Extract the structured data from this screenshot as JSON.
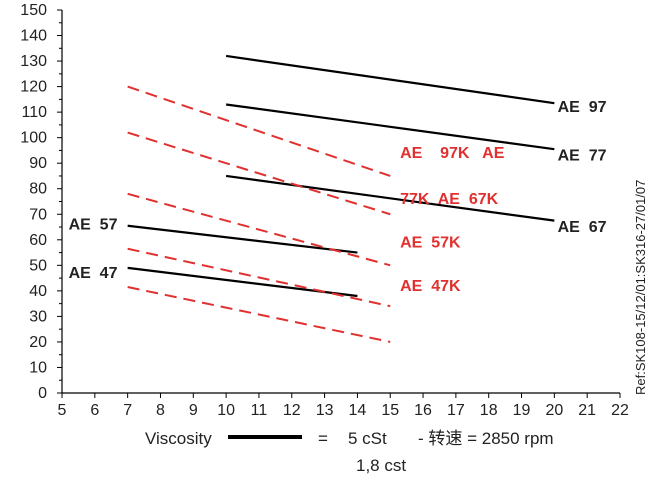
{
  "chart_data": {
    "type": "line",
    "xlim": [
      5,
      22
    ],
    "ylim": [
      0,
      150
    ],
    "x_ticks": [
      5,
      6,
      7,
      8,
      9,
      10,
      11,
      12,
      13,
      14,
      15,
      16,
      17,
      18,
      19,
      20,
      21,
      22
    ],
    "y_ticks": [
      0,
      10,
      20,
      30,
      40,
      50,
      60,
      70,
      80,
      90,
      100,
      110,
      120,
      130,
      140,
      150
    ],
    "grid": false,
    "series": [
      {
        "line_style": "solid",
        "color": "#000000",
        "x": [
          10,
          20
        ],
        "y": [
          132,
          113.5
        ]
      },
      {
        "line_style": "solid",
        "color": "#000000",
        "x": [
          10,
          20
        ],
        "y": [
          113,
          95.5
        ]
      },
      {
        "line_style": "solid",
        "color": "#000000",
        "x": [
          10,
          20
        ],
        "y": [
          85,
          67.5
        ]
      },
      {
        "line_style": "solid",
        "color": "#000000",
        "x": [
          7,
          14
        ],
        "y": [
          65.5,
          55
        ]
      },
      {
        "line_style": "solid",
        "color": "#000000",
        "x": [
          7,
          14
        ],
        "y": [
          49,
          38
        ]
      },
      {
        "line_style": "dashed",
        "color": "#e03030",
        "x": [
          7,
          15
        ],
        "y": [
          120,
          85
        ]
      },
      {
        "line_style": "dashed",
        "color": "#e03030",
        "x": [
          7,
          15
        ],
        "y": [
          102,
          70
        ]
      },
      {
        "line_style": "dashed",
        "color": "#e03030",
        "x": [
          7,
          15
        ],
        "y": [
          78,
          50
        ]
      },
      {
        "line_style": "dashed",
        "color": "#e03030",
        "x": [
          7,
          15
        ],
        "y": [
          56.5,
          34
        ]
      },
      {
        "line_style": "dashed",
        "color": "#e03030",
        "x": [
          7,
          15
        ],
        "y": [
          41.5,
          20
        ]
      }
    ],
    "annotations": [
      {
        "text": "AE  97",
        "x": 20.1,
        "y": 110,
        "color": "#222222"
      },
      {
        "text": "AE  77",
        "x": 20.1,
        "y": 91,
        "color": "#222222"
      },
      {
        "text": "AE  67",
        "x": 20.1,
        "y": 63,
        "color": "#222222"
      },
      {
        "text": "AE  57",
        "x": 5.2,
        "y": 64,
        "color": "#222222"
      },
      {
        "text": "AE  47",
        "x": 5.2,
        "y": 45,
        "color": "#222222"
      },
      {
        "text": "AE    97K   AE",
        "x": 15.3,
        "y": 92,
        "color": "#e03030"
      },
      {
        "text": "77K  AE  67K",
        "x": 15.3,
        "y": 74,
        "color": "#e03030"
      },
      {
        "text": "AE  57K",
        "x": 15.3,
        "y": 57,
        "color": "#e03030"
      },
      {
        "text": "AE  47K",
        "x": 15.3,
        "y": 40,
        "color": "#e03030"
      }
    ],
    "legend": {
      "label": "Viscosity",
      "eq": "=",
      "value1": "5 cSt",
      "rpm": "- 转速 = 2850 rpm",
      "value2": "1,8  cst"
    },
    "reference": "Ref:SK108-15/12/01:SK316-27/01/07",
    "colors": {
      "solid": "#000000",
      "dashed": "#e03030"
    }
  }
}
